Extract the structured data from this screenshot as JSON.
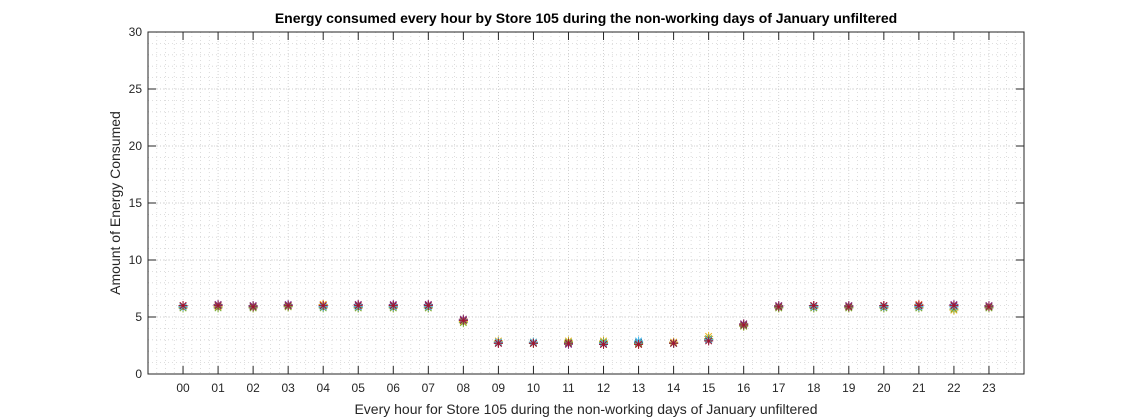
{
  "chart_data": {
    "type": "scatter",
    "title": "Energy consumed every hour by Store 105 during the non-working days of January unfiltered",
    "xlabel": "Every hour for Store 105 during the non-working days of January unfiltered",
    "ylabel": "Amount of Energy Consumed",
    "categories": [
      "00",
      "01",
      "02",
      "03",
      "04",
      "05",
      "06",
      "07",
      "08",
      "09",
      "10",
      "11",
      "12",
      "13",
      "14",
      "15",
      "16",
      "17",
      "18",
      "19",
      "20",
      "21",
      "22",
      "23"
    ],
    "ylim": [
      0,
      30
    ],
    "yticks": [
      0,
      5,
      10,
      15,
      20,
      25,
      30
    ],
    "grid": true,
    "grid_minor": true,
    "marker": "asterisk",
    "series": [
      {
        "color": "#0072BD",
        "values": [
          5.9,
          6.0,
          5.9,
          6.0,
          5.9,
          5.9,
          5.9,
          6.0,
          4.7,
          2.8,
          2.8,
          2.7,
          2.7,
          2.8,
          2.7,
          3.0,
          4.3,
          5.9,
          5.9,
          5.9,
          5.9,
          5.9,
          5.9,
          5.9
        ]
      },
      {
        "color": "#D95319",
        "values": [
          6.0,
          6.1,
          6.0,
          6.0,
          6.1,
          6.1,
          6.0,
          6.1,
          4.8,
          2.7,
          2.7,
          2.7,
          2.6,
          2.7,
          2.7,
          3.0,
          4.4,
          6.0,
          6.0,
          6.0,
          6.0,
          6.1,
          6.0,
          6.0
        ]
      },
      {
        "color": "#EDB120",
        "values": [
          5.8,
          5.9,
          5.8,
          5.9,
          6.1,
          5.8,
          5.8,
          5.8,
          4.6,
          2.9,
          2.8,
          2.9,
          2.9,
          2.6,
          2.8,
          3.3,
          4.2,
          5.8,
          5.8,
          5.8,
          5.8,
          5.8,
          5.6,
          5.8
        ]
      },
      {
        "color": "#7E2F8E",
        "values": [
          6.0,
          6.1,
          6.0,
          6.1,
          6.0,
          6.1,
          6.1,
          6.1,
          4.8,
          2.7,
          2.7,
          2.6,
          2.6,
          2.7,
          2.7,
          3.0,
          4.4,
          6.0,
          6.0,
          6.0,
          6.0,
          6.0,
          6.1,
          6.0
        ]
      },
      {
        "color": "#77AC30",
        "values": [
          5.8,
          5.8,
          5.8,
          5.9,
          5.8,
          5.8,
          5.8,
          5.8,
          4.5,
          2.8,
          2.7,
          2.8,
          2.8,
          2.7,
          2.7,
          3.1,
          4.2,
          5.8,
          5.8,
          5.8,
          5.8,
          5.8,
          5.7,
          5.8
        ]
      },
      {
        "color": "#4DBEEE",
        "values": [
          5.9,
          6.0,
          5.9,
          6.0,
          5.9,
          5.9,
          5.9,
          5.9,
          4.7,
          2.8,
          2.8,
          2.7,
          2.7,
          2.9,
          2.7,
          3.0,
          4.3,
          5.9,
          5.9,
          5.9,
          5.9,
          5.9,
          5.9,
          5.9
        ]
      },
      {
        "color": "#A2142F",
        "values": [
          6.0,
          6.0,
          5.9,
          6.0,
          6.0,
          6.0,
          6.0,
          6.0,
          4.7,
          2.7,
          2.7,
          2.7,
          2.6,
          2.6,
          2.7,
          2.9,
          4.3,
          5.9,
          6.0,
          5.9,
          6.0,
          6.0,
          6.0,
          5.9
        ]
      }
    ]
  }
}
